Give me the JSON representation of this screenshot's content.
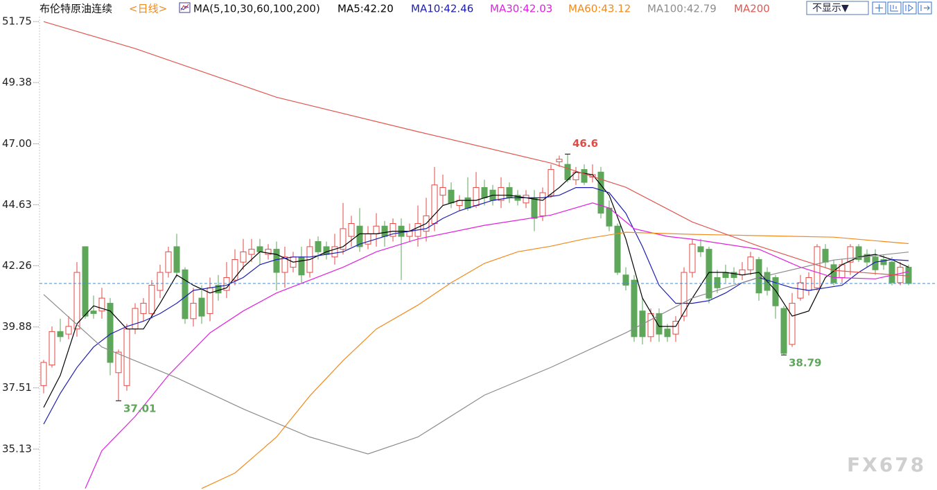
{
  "chart_data": {
    "type": "candlestick",
    "title": "布伦特原油连续",
    "period": "<日线>",
    "indicator": "MA(5,10,30,60,100,200)",
    "up_color": "#e24a45",
    "down_color": "#5ea65a",
    "ylim": [
      33.54,
      52.59
    ],
    "yticks": [
      51.75,
      49.38,
      {
        "value": 47,
        "label": "47.00"
      },
      44.63,
      42.26,
      39.88,
      37.51,
      35.13
    ],
    "last_price": 41.57,
    "last_price_color": "#3a8ee6",
    "open": [
      37.6,
      38.4,
      39.7,
      39.6,
      39.8,
      43.0,
      40.5,
      40.5,
      40.8,
      38.1,
      37.6,
      39.8,
      40.4,
      40.4,
      41.3,
      42.0,
      43.0,
      42.1,
      40.2,
      41.0,
      40.4,
      41.5,
      41.3,
      41.7,
      42.4,
      42.7,
      43.0,
      42.7,
      42.9,
      42.0,
      42.2,
      42.6,
      42.0,
      43.2,
      43.0,
      42.6,
      42.9,
      43.4,
      43.8,
      43.1,
      43.5,
      43.8,
      43.4,
      43.8,
      43.4,
      43.4,
      43.6,
      43.9,
      45.0,
      45.2,
      44.6,
      44.9,
      44.6,
      45.3,
      45.2,
      44.8,
      45.3,
      45.0,
      44.7,
      44.9,
      44.2,
      45.0,
      46.3,
      46.2,
      45.6,
      46.0,
      45.7,
      45.9,
      44.5,
      43.8,
      41.9,
      41.7,
      40.5,
      39.5,
      40.4,
      39.8,
      39.6,
      40.3,
      42.0,
      43.0,
      42.9,
      41.8,
      42.0,
      42.0,
      41.9,
      42.1,
      42.5,
      42.0,
      41.8,
      40.6,
      39.2,
      41.0,
      41.3,
      41.4,
      42.9,
      42.3,
      41.8,
      42.4,
      43.0,
      42.7,
      42.6,
      42.5,
      42.4,
      41.6,
      42.2
    ],
    "high": [
      38.6,
      39.9,
      40.2,
      40.3,
      42.4,
      43.0,
      41.1,
      41.4,
      41.0,
      39.0,
      40.0,
      40.8,
      41.0,
      41.7,
      42.3,
      43.0,
      43.5,
      42.2,
      41.4,
      41.5,
      41.8,
      41.9,
      42.4,
      42.9,
      43.3,
      43.3,
      43.3,
      43.1,
      43.2,
      43.0,
      42.8,
      43.0,
      43.3,
      43.4,
      43.2,
      43.5,
      44.7,
      44.2,
      44.5,
      43.8,
      44.3,
      44.0,
      44.1,
      44.1,
      43.9,
      44.6,
      44.9,
      46.1,
      45.8,
      45.5,
      45.0,
      45.7,
      45.9,
      45.6,
      45.4,
      45.7,
      45.5,
      45.2,
      45.2,
      45.2,
      45.3,
      46.2,
      46.54,
      46.6,
      46.1,
      46.2,
      46.2,
      46.1,
      44.8,
      43.9,
      42.2,
      41.9,
      41.0,
      40.6,
      40.6,
      40.0,
      40.3,
      42.2,
      43.3,
      43.3,
      43.0,
      42.1,
      42.3,
      42.2,
      42.4,
      42.8,
      42.6,
      42.2,
      41.9,
      40.7,
      41.2,
      41.9,
      42.0,
      43.1,
      43.1,
      42.5,
      42.5,
      43.1,
      43.1,
      42.9,
      42.9,
      42.7,
      42.6,
      42.4,
      42.3
    ],
    "low": [
      37.3,
      38.3,
      39.3,
      39.4,
      39.5,
      40.2,
      40.2,
      40.2,
      38.0,
      37.01,
      37.4,
      39.6,
      40.1,
      40.2,
      41.0,
      41.8,
      41.8,
      40.0,
      39.9,
      40.0,
      40.1,
      40.9,
      41.0,
      41.5,
      42.1,
      42.4,
      42.3,
      42.5,
      41.3,
      41.4,
      42.0,
      41.6,
      41.8,
      42.5,
      42.5,
      42.3,
      42.7,
      43.0,
      42.8,
      42.9,
      43.0,
      43.0,
      43.2,
      41.7,
      43.2,
      43.0,
      43.2,
      43.6,
      44.6,
      44.5,
      44.4,
      44.4,
      44.5,
      44.6,
      44.6,
      44.5,
      44.7,
      44.6,
      44.5,
      43.6,
      44.0,
      44.9,
      46.1,
      45.5,
      45.4,
      45.4,
      45.5,
      44.1,
      43.6,
      41.9,
      41.3,
      39.3,
      39.2,
      39.3,
      39.3,
      39.3,
      39.3,
      40.1,
      41.8,
      42.6,
      40.8,
      41.2,
      41.6,
      41.6,
      41.7,
      41.9,
      40.9,
      41.1,
      40.2,
      38.79,
      39.1,
      40.9,
      41.1,
      41.3,
      42.2,
      41.5,
      41.6,
      41.9,
      42.4,
      42.2,
      41.9,
      42.1,
      41.5,
      41.5,
      41.5
    ],
    "close": [
      38.5,
      39.7,
      39.5,
      39.9,
      42.0,
      40.3,
      40.4,
      41.0,
      38.5,
      38.9,
      39.8,
      40.6,
      40.8,
      41.5,
      42.0,
      42.8,
      42.0,
      40.2,
      40.8,
      40.3,
      41.4,
      41.2,
      41.8,
      42.5,
      42.8,
      42.9,
      42.8,
      42.9,
      42.0,
      42.6,
      42.6,
      41.9,
      43.0,
      42.8,
      42.7,
      43.0,
      43.7,
      43.9,
      43.0,
      43.5,
      43.8,
      43.4,
      43.9,
      43.4,
      43.6,
      43.9,
      44.2,
      45.4,
      45.3,
      44.7,
      44.8,
      44.5,
      45.3,
      44.9,
      44.8,
      45.3,
      44.9,
      44.8,
      45.0,
      44.1,
      45.1,
      46.0,
      46.4,
      45.6,
      45.9,
      45.5,
      45.8,
      44.3,
      43.8,
      42.0,
      41.5,
      39.5,
      39.5,
      40.4,
      39.6,
      39.5,
      40.1,
      42.0,
      43.1,
      42.8,
      41.0,
      41.4,
      41.8,
      41.8,
      42.1,
      42.6,
      41.2,
      41.3,
      40.7,
      38.85,
      40.8,
      41.6,
      41.8,
      43.0,
      42.4,
      41.6,
      42.3,
      43.0,
      42.5,
      42.4,
      42.1,
      42.3,
      41.6,
      42.2,
      41.57
    ],
    "series": [
      {
        "name": "MA5:42.20",
        "color": "#000000",
        "x": [
          0,
          2,
          4,
          6,
          8,
          10,
          12,
          14,
          16,
          18,
          20,
          22,
          24,
          26,
          28,
          30,
          32,
          34,
          36,
          38,
          40,
          42,
          44,
          46,
          48,
          50,
          52,
          54,
          56,
          58,
          60,
          62,
          64,
          66,
          68,
          70,
          72,
          74,
          76,
          78,
          80,
          82,
          84,
          86,
          88,
          90,
          92,
          94,
          96,
          98,
          100,
          102,
          104
        ],
        "values": [
          36.75,
          38.0,
          40.0,
          40.7,
          40.5,
          39.8,
          39.8,
          40.8,
          41.9,
          41.5,
          41.2,
          41.4,
          42.2,
          42.8,
          42.7,
          42.4,
          42.5,
          42.8,
          43.0,
          43.5,
          43.5,
          43.6,
          43.6,
          43.9,
          44.6,
          44.8,
          44.8,
          45.0,
          45.0,
          44.9,
          44.8,
          45.3,
          45.9,
          45.8,
          45.0,
          43.3,
          41.0,
          39.9,
          39.9,
          41.0,
          42.0,
          42.0,
          41.9,
          42.0,
          41.3,
          40.3,
          40.5,
          41.8,
          42.3,
          42.6,
          42.7,
          42.5,
          42.2
        ]
      },
      {
        "name": "MA10:42.46",
        "color": "#1c1cb4",
        "x": [
          0,
          2,
          4,
          6,
          8,
          10,
          12,
          14,
          16,
          18,
          20,
          22,
          24,
          26,
          28,
          30,
          32,
          34,
          36,
          38,
          40,
          42,
          44,
          46,
          48,
          50,
          52,
          54,
          56,
          58,
          60,
          62,
          64,
          66,
          68,
          70,
          72,
          74,
          76,
          78,
          80,
          82,
          84,
          86,
          88,
          90,
          92,
          94,
          96,
          98,
          100,
          102,
          104
        ],
        "values": [
          36.1,
          37.3,
          38.3,
          39.1,
          39.6,
          39.9,
          40.1,
          40.4,
          40.8,
          41.3,
          41.4,
          41.5,
          41.8,
          42.3,
          42.5,
          42.6,
          42.6,
          42.7,
          42.8,
          43.1,
          43.3,
          43.5,
          43.6,
          43.7,
          44.1,
          44.4,
          44.6,
          44.8,
          44.9,
          44.9,
          44.9,
          45.0,
          45.3,
          45.3,
          45.1,
          44.3,
          43.0,
          41.5,
          40.8,
          40.8,
          40.9,
          41.2,
          41.6,
          41.8,
          41.6,
          41.4,
          41.3,
          41.4,
          41.5,
          42.0,
          42.4,
          42.5,
          42.46
        ]
      },
      {
        "name": "MA30:42.03",
        "color": "#e020e0",
        "x": [
          5,
          7,
          11,
          15,
          20,
          24,
          28,
          32,
          36,
          40,
          45,
          53,
          61,
          66,
          68,
          71,
          75,
          78,
          86,
          91,
          95,
          100,
          104
        ],
        "values": [
          33.6,
          35.07,
          36.4,
          38.0,
          39.65,
          40.5,
          41.2,
          41.7,
          42.2,
          42.8,
          43.3,
          43.83,
          44.23,
          44.7,
          44.5,
          43.7,
          43.4,
          43.29,
          42.9,
          42.2,
          41.8,
          41.75,
          42.03
        ]
      },
      {
        "name": "MA60:43.12",
        "color": "#f28a1c",
        "x": [
          19,
          23,
          28,
          32,
          36,
          40,
          45,
          49,
          53,
          57,
          61,
          65,
          70,
          78,
          86,
          95,
          104
        ],
        "values": [
          33.6,
          34.2,
          35.6,
          37.2,
          38.57,
          39.8,
          40.73,
          41.6,
          42.35,
          42.8,
          43.02,
          43.3,
          43.56,
          43.48,
          43.43,
          43.37,
          43.12
        ]
      },
      {
        "name": "MA100:42.79",
        "color": "#8c8c8c",
        "x": [
          0,
          7,
          16,
          24,
          32,
          39,
          45,
          53,
          61,
          70,
          78,
          86,
          95,
          104
        ],
        "values": [
          41.14,
          39.1,
          37.9,
          36.69,
          35.6,
          34.94,
          35.6,
          37.23,
          38.31,
          39.65,
          41.0,
          41.8,
          42.48,
          42.79
        ]
      },
      {
        "name": "MA200",
        "color": "#e0574f",
        "x": [
          0,
          11,
          28,
          45,
          61,
          70,
          78,
          86,
          95,
          104
        ],
        "values": [
          51.75,
          50.7,
          48.81,
          47.47,
          46.25,
          45.31,
          43.96,
          43.02,
          42.08,
          41.86
        ]
      }
    ]
  },
  "toolbar": {
    "display": "不显示▼"
  },
  "watermark": "FX678"
}
